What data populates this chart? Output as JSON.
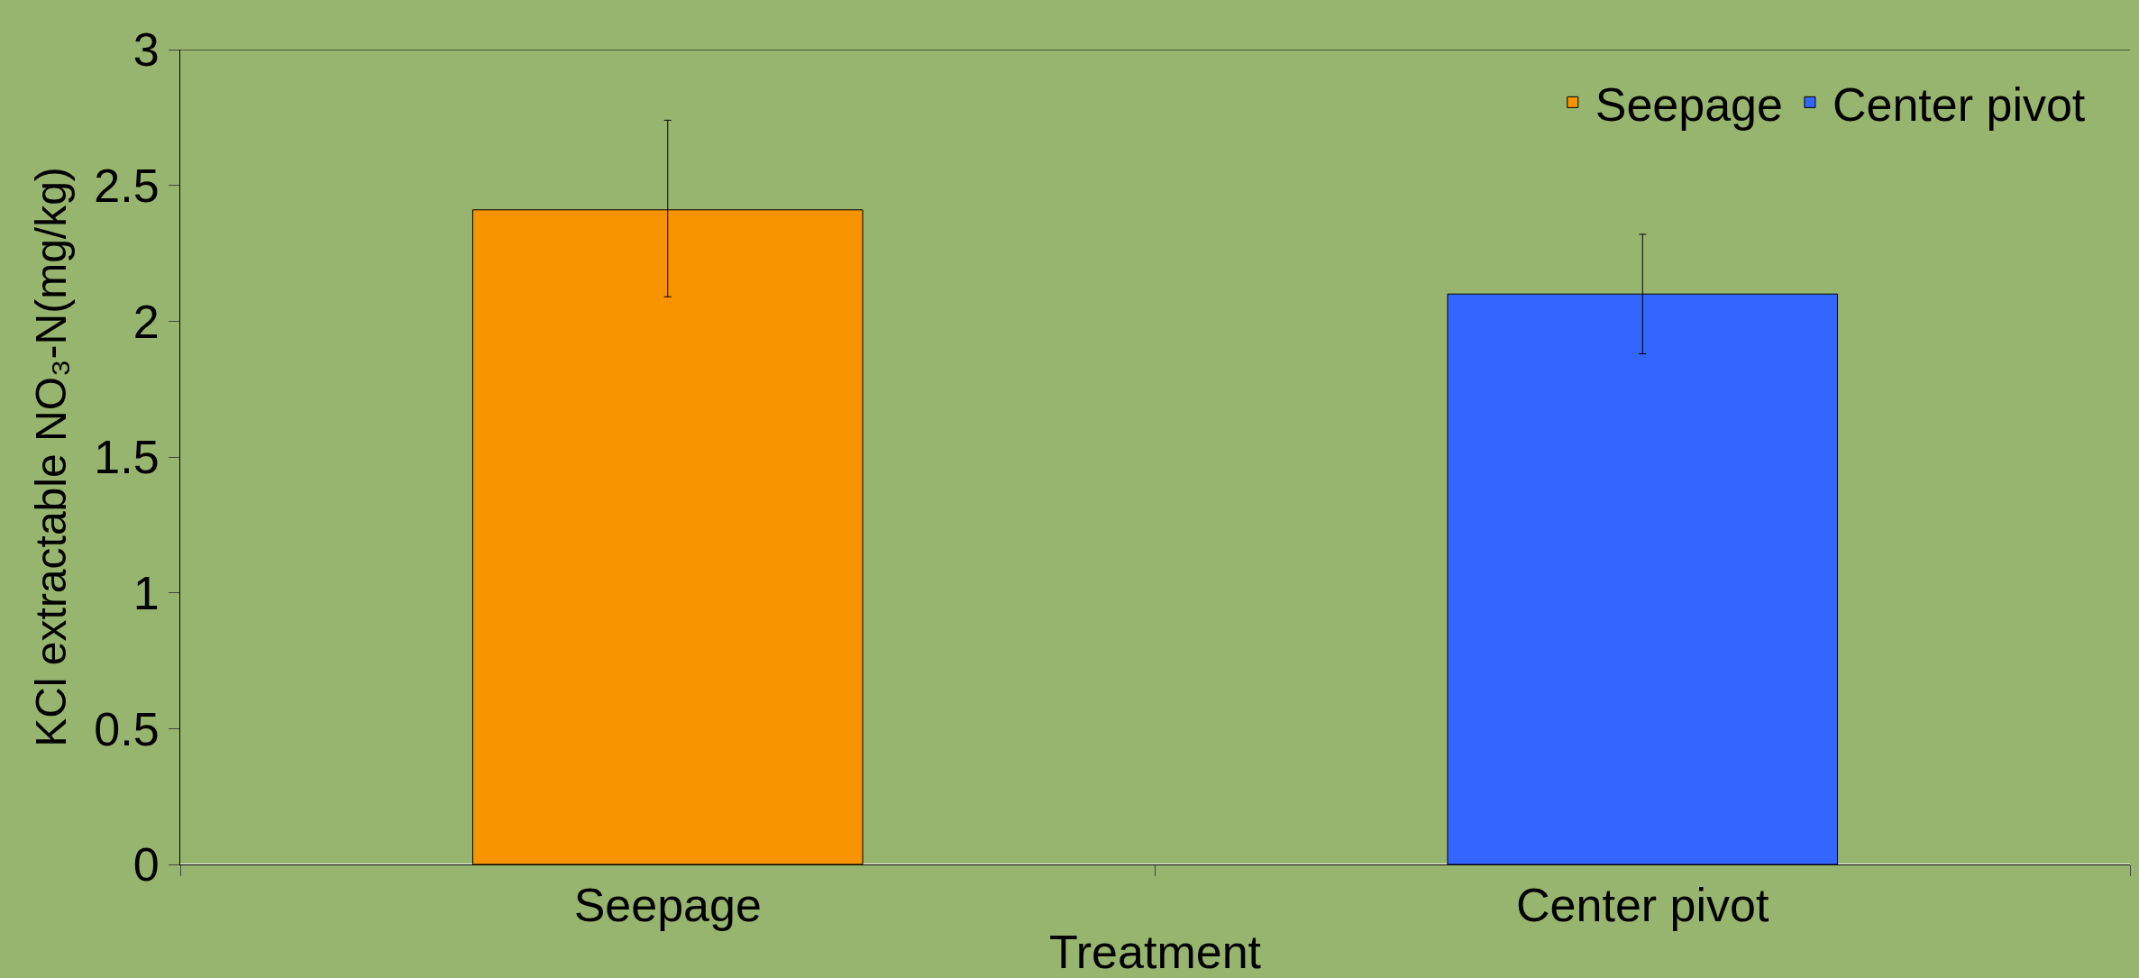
{
  "chart_data": {
    "type": "bar",
    "xlabel": "Treatment",
    "ylabel": "KCl extractable NO₃-N(mg/kg)",
    "categories": [
      "Seepage",
      "Center pivot"
    ],
    "series": [
      {
        "name": "Seepage",
        "color": "#f79400",
        "values": [
          2.41,
          null
        ],
        "errors": [
          [
            2.09,
            2.74
          ],
          null
        ]
      },
      {
        "name": "Center pivot",
        "color": "#3366ff",
        "values": [
          null,
          2.1
        ],
        "errors": [
          null,
          [
            1.88,
            2.32
          ]
        ]
      }
    ],
    "ylim": [
      0,
      3
    ],
    "yticks": [
      0,
      0.5,
      1,
      1.5,
      2,
      2.5,
      3
    ],
    "grid": false,
    "legend": "top right"
  }
}
